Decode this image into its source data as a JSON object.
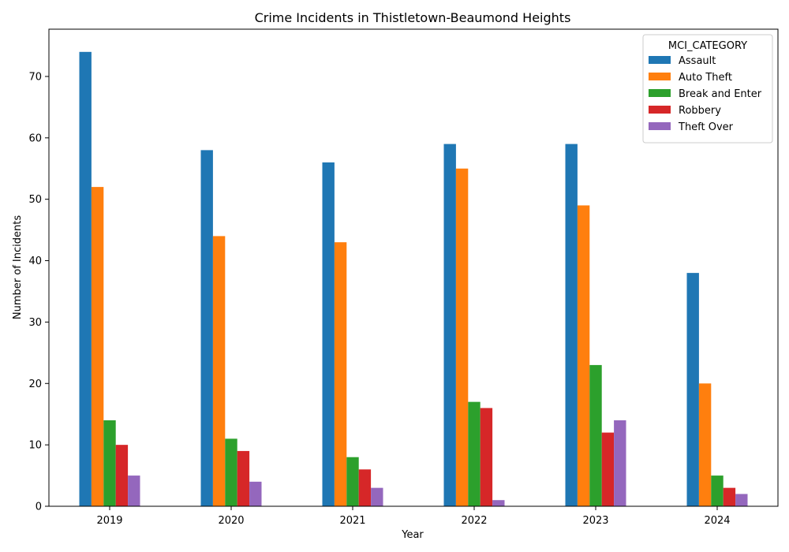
{
  "chart_data": {
    "type": "bar",
    "title": "Crime Incidents in Thistletown-Beaumond Heights",
    "xlabel": "Year",
    "ylabel": "Number of Incidents",
    "categories": [
      "2019",
      "2020",
      "2021",
      "2022",
      "2023",
      "2024"
    ],
    "series": [
      {
        "name": "Assault",
        "color": "#1f77b4",
        "values": [
          74,
          58,
          56,
          59,
          59,
          38
        ]
      },
      {
        "name": "Auto Theft",
        "color": "#ff7f0e",
        "values": [
          52,
          44,
          43,
          55,
          49,
          20
        ]
      },
      {
        "name": "Break and Enter",
        "color": "#2ca02c",
        "values": [
          14,
          11,
          8,
          17,
          23,
          5
        ]
      },
      {
        "name": "Robbery",
        "color": "#d62728",
        "values": [
          10,
          9,
          6,
          16,
          12,
          3
        ]
      },
      {
        "name": "Theft Over",
        "color": "#9467bd",
        "values": [
          5,
          4,
          3,
          1,
          14,
          2
        ]
      }
    ],
    "ylim": [
      0,
      77.7
    ],
    "yticks": [
      0,
      10,
      20,
      30,
      40,
      50,
      60,
      70
    ],
    "legend": {
      "title": "MCI_CATEGORY",
      "placement": "top-right"
    },
    "grid": false
  }
}
